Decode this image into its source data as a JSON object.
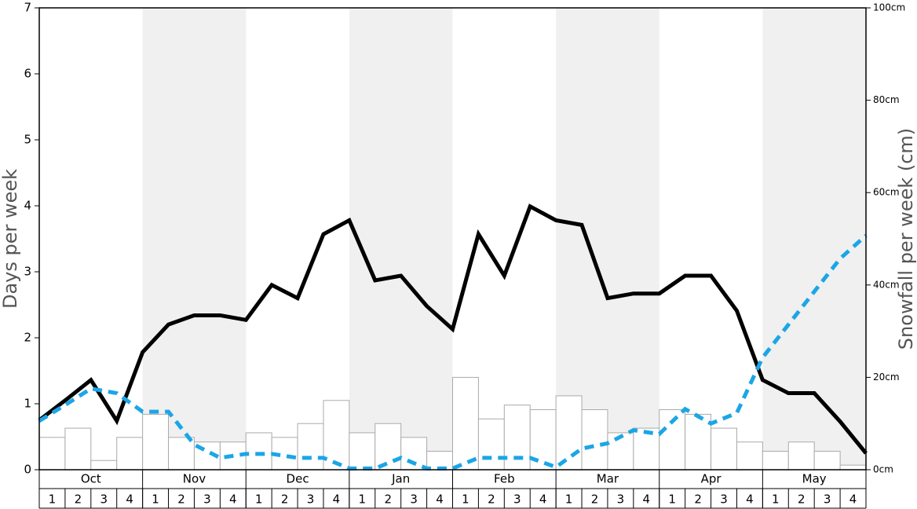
{
  "chart_data": {
    "type": "bar",
    "ylabel": "Days per week",
    "y2label": "Snowfall per week (cm)",
    "months": [
      "Oct",
      "Nov",
      "Dec",
      "Jan",
      "Feb",
      "Mar",
      "Apr",
      "May"
    ],
    "categories": [
      "1",
      "2",
      "3",
      "4",
      "1",
      "2",
      "3",
      "4",
      "1",
      "2",
      "3",
      "4",
      "1",
      "2",
      "3",
      "4",
      "1",
      "2",
      "3",
      "4",
      "1",
      "2",
      "3",
      "4",
      "1",
      "2",
      "3",
      "4",
      "1",
      "2",
      "3",
      "4"
    ],
    "ylim": [
      0,
      7
    ],
    "yticks": [
      0,
      1,
      2,
      3,
      4,
      5,
      6,
      7
    ],
    "y2lim": [
      0,
      100
    ],
    "y2ticks": [
      {
        "value": 0,
        "label": "0cm"
      },
      {
        "value": 20,
        "label": "20cm"
      },
      {
        "value": 40,
        "label": "40cm"
      },
      {
        "value": 60,
        "label": "60cm"
      },
      {
        "value": 80,
        "label": "80cm"
      },
      {
        "value": 100,
        "label": "100cm"
      }
    ],
    "xlim": [
      0,
      32
    ],
    "shade_color": "#f0f0f0",
    "series": [
      {
        "type": "bar",
        "axis": "y2",
        "color": "#ffffff",
        "stroke": "#aaaaaa",
        "values": [
          7,
          9,
          2,
          7,
          12,
          7,
          6,
          6,
          8,
          7,
          10,
          15,
          8,
          10,
          7,
          4,
          20,
          11,
          14,
          13,
          16,
          13,
          8,
          9,
          13,
          12,
          9,
          6,
          4,
          6,
          4,
          1
        ]
      },
      {
        "type": "line",
        "color": "#000000",
        "dashed": false,
        "x": [
          0,
          1,
          2,
          3,
          4,
          5,
          6,
          7,
          8,
          9,
          10,
          11,
          12,
          13,
          14,
          15,
          16,
          17,
          18,
          19,
          20,
          21,
          22,
          23,
          24,
          25,
          26,
          27,
          28,
          29,
          30,
          31,
          32
        ],
        "values": [
          0.75,
          1.05,
          1.36,
          0.74,
          1.78,
          2.2,
          2.34,
          2.34,
          2.27,
          2.8,
          2.6,
          3.57,
          3.78,
          2.87,
          2.94,
          2.48,
          2.13,
          3.57,
          2.94,
          3.99,
          3.78,
          3.71,
          2.6,
          2.67,
          2.67,
          2.94,
          2.94,
          2.41,
          1.36,
          1.16,
          1.16,
          0.73,
          0.25
        ]
      },
      {
        "type": "line",
        "color": "#1ba6e6",
        "dashed": true,
        "x": [
          0,
          1,
          2,
          3,
          4,
          5,
          6,
          7,
          8,
          9,
          10,
          11,
          12,
          13,
          14,
          15,
          16,
          17,
          18,
          19,
          20,
          21,
          22,
          23,
          24,
          25,
          26,
          27,
          28,
          29,
          30,
          31,
          32
        ],
        "values": [
          0.74,
          0.98,
          1.23,
          1.16,
          0.88,
          0.88,
          0.38,
          0.18,
          0.24,
          0.24,
          0.18,
          0.18,
          0.02,
          0.02,
          0.18,
          0.02,
          0.02,
          0.18,
          0.18,
          0.18,
          0.04,
          0.32,
          0.4,
          0.6,
          0.54,
          0.92,
          0.7,
          0.86,
          1.7,
          2.2,
          2.7,
          3.2,
          3.55
        ]
      }
    ]
  }
}
